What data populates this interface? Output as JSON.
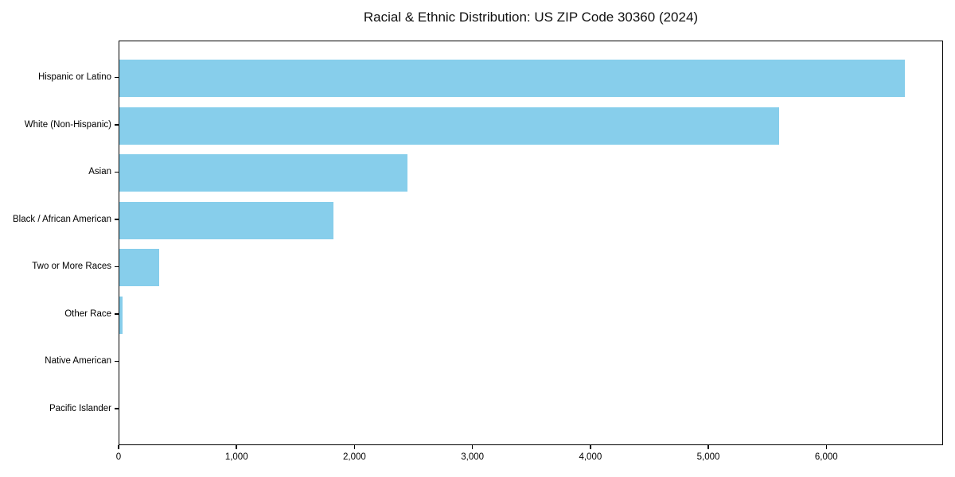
{
  "chart_data": {
    "type": "bar",
    "orientation": "horizontal",
    "title": "Racial & Ethnic Distribution: US ZIP Code 30360 (2024)",
    "categories": [
      "Hispanic or Latino",
      "White (Non-Hispanic)",
      "Asian",
      "Black / African American",
      "Two or More Races",
      "Other Race",
      "Native American",
      "Pacific Islander"
    ],
    "values": [
      6660,
      5590,
      2440,
      1815,
      340,
      27,
      0,
      0
    ],
    "xlabel": "",
    "ylabel": "",
    "xlim": [
      0,
      6990
    ],
    "x_ticks": {
      "values": [
        0,
        1000,
        2000,
        3000,
        4000,
        5000,
        6000
      ],
      "labels": [
        "0",
        "1,000",
        "2,000",
        "3,000",
        "4,000",
        "5,000",
        "6,000"
      ]
    },
    "bar_color": "#87CEEB",
    "grid": false,
    "legend_position": "none"
  }
}
